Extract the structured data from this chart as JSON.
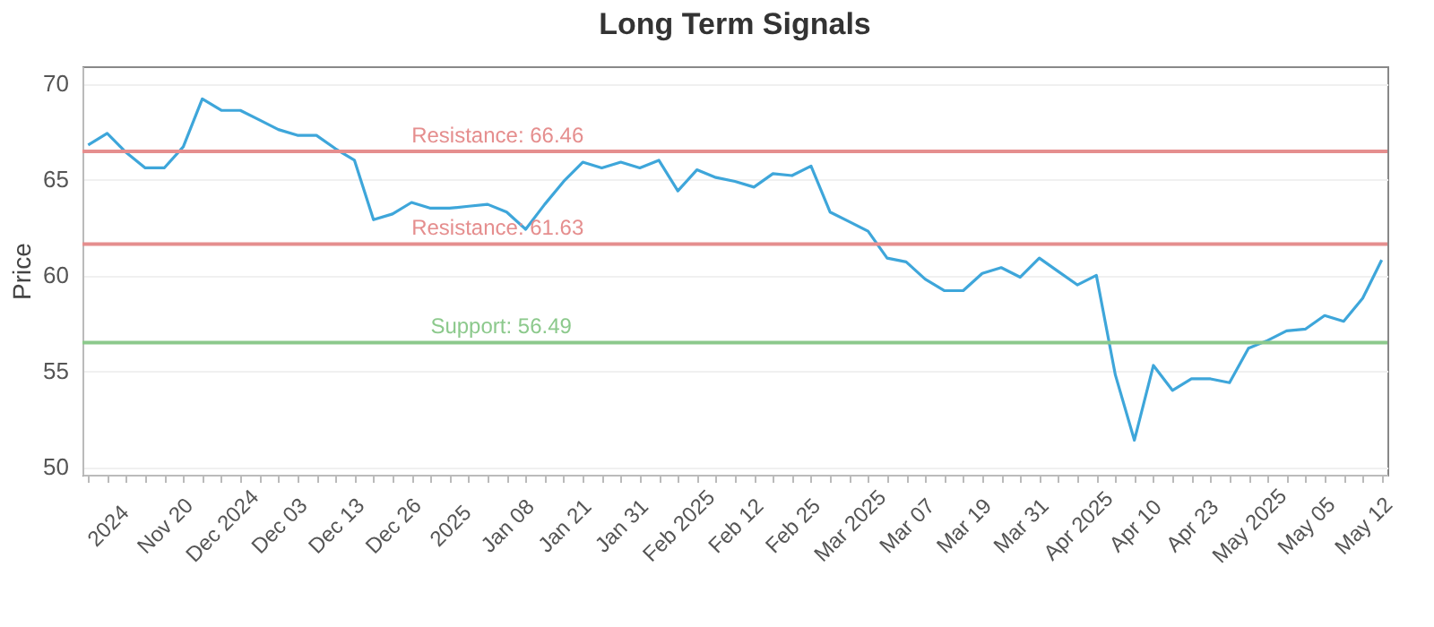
{
  "chart_data": {
    "type": "line",
    "title": "Long Term Signals",
    "ylabel": "Price",
    "categories": [
      null,
      "2024",
      null,
      null,
      "Nov 20",
      null,
      null,
      "Dec 2024",
      null,
      null,
      "Dec 03",
      null,
      null,
      "Dec 13",
      null,
      null,
      "Dec 26",
      null,
      null,
      "2025",
      null,
      null,
      "Jan 08",
      null,
      null,
      "Jan 21",
      null,
      null,
      "Jan 31",
      null,
      null,
      "Feb 2025",
      null,
      null,
      "Feb 12",
      null,
      null,
      "Feb 25",
      null,
      null,
      "Mar 2025",
      null,
      null,
      "Mar 07",
      null,
      null,
      "Mar 19",
      null,
      null,
      "Mar 31",
      null,
      null,
      "Apr 2025",
      null,
      null,
      "Apr 10",
      null,
      null,
      "Apr 23",
      null,
      null,
      "May 2025",
      null,
      null,
      "May 05",
      null,
      null,
      "May 12",
      null
    ],
    "series": [
      {
        "color": "#3ea6da",
        "values": [
          66.8,
          67.4,
          66.4,
          65.6,
          65.6,
          66.7,
          69.2,
          68.6,
          68.6,
          68.1,
          67.6,
          67.3,
          67.3,
          66.6,
          66.0,
          62.9,
          63.2,
          63.8,
          63.5,
          63.5,
          63.6,
          63.7,
          63.3,
          62.4,
          63.7,
          64.9,
          65.9,
          65.6,
          65.9,
          65.6,
          66.0,
          64.4,
          65.5,
          65.1,
          64.9,
          64.6,
          65.3,
          65.2,
          65.7,
          63.3,
          62.8,
          62.3,
          60.9,
          60.7,
          59.8,
          59.2,
          59.2,
          60.1,
          60.4,
          59.9,
          60.9,
          60.2,
          59.5,
          60.0,
          54.8,
          51.4,
          55.3,
          54.0,
          54.6,
          54.6,
          54.4,
          56.2,
          56.6,
          57.1,
          57.2,
          57.9,
          57.6,
          58.8,
          60.8
        ]
      }
    ],
    "ylim": [
      49.6,
      70.9
    ],
    "yticks": [
      50,
      55,
      60,
      65,
      70
    ],
    "grid": "y",
    "ref_lines": [
      {
        "axis": "y",
        "value": 66.46,
        "label": "Resistance: 66.46",
        "color": "#e58e8e"
      },
      {
        "axis": "y",
        "value": 61.63,
        "label": "Resistance: 61.63",
        "color": "#e58e8e"
      },
      {
        "axis": "y",
        "value": 56.49,
        "label": "Support: 56.49",
        "color": "#8cc98c"
      }
    ]
  }
}
